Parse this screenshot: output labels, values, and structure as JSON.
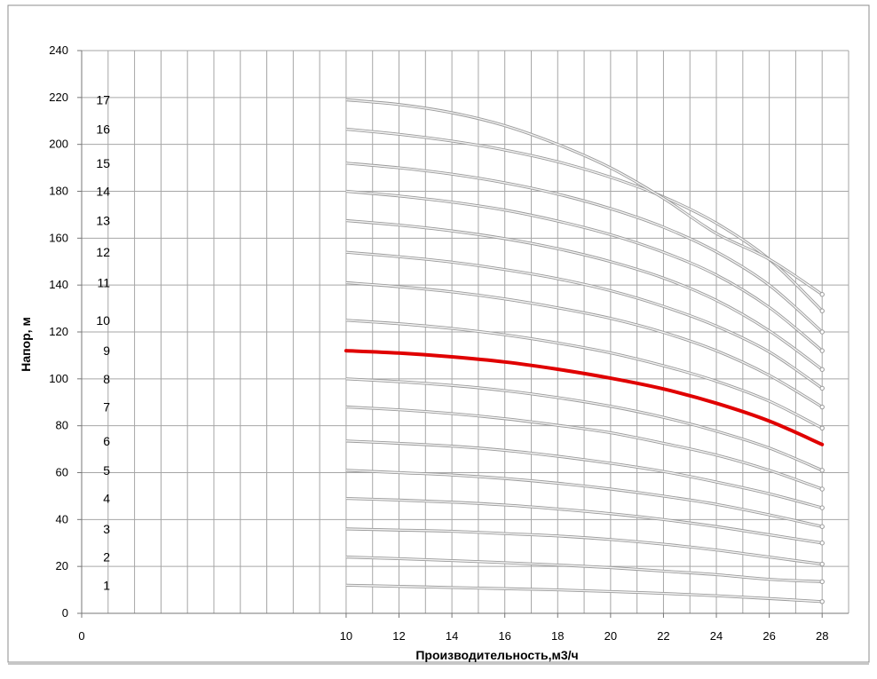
{
  "chart_data": {
    "type": "line",
    "title": "",
    "xlabel": "Производительность,м3/ч",
    "ylabel": "Напор, м",
    "xlim": [
      0,
      29
    ],
    "ylim": [
      0,
      240
    ],
    "xticks": [
      0,
      10,
      12,
      14,
      16,
      18,
      20,
      22,
      24,
      26,
      28
    ],
    "yticks": [
      0,
      20,
      40,
      60,
      80,
      100,
      120,
      140,
      160,
      180,
      200,
      220,
      240
    ],
    "grid": true,
    "legend": "none",
    "highlight_color": "#e00000",
    "curve_color": "#c8c8c8",
    "grid_color": "#a6a6a6",
    "x": [
      10,
      12,
      14,
      16,
      18,
      20,
      22,
      24,
      26,
      28
    ],
    "series": [
      {
        "name": "1",
        "values": [
          12,
          11.5,
          11,
          10.5,
          10,
          9.3,
          8.5,
          7.5,
          6.3,
          5
        ]
      },
      {
        "name": "2",
        "values": [
          24,
          23.3,
          22.5,
          21.6,
          20.6,
          19.5,
          18,
          16.5,
          14.5,
          13.5
        ]
      },
      {
        "name": "3",
        "values": [
          36,
          35.5,
          35,
          34,
          33,
          31.5,
          29.5,
          27,
          24,
          21
        ]
      },
      {
        "name": "4",
        "values": [
          49,
          48.3,
          47.4,
          46.2,
          44.5,
          42.5,
          40,
          37,
          33.5,
          30
        ]
      },
      {
        "name": "5",
        "values": [
          61,
          60,
          59,
          57.5,
          55.5,
          53,
          50,
          46.5,
          42,
          37
        ]
      },
      {
        "name": "6",
        "values": [
          73.5,
          72.5,
          71.3,
          69.5,
          67,
          64,
          60.5,
          56,
          51,
          45
        ]
      },
      {
        "name": "7",
        "values": [
          88,
          86.8,
          85.2,
          83,
          80.2,
          77,
          72.5,
          67.5,
          61,
          53
        ]
      },
      {
        "name": "8",
        "values": [
          100,
          98.8,
          97.2,
          95,
          92,
          88.3,
          83.6,
          77.7,
          70.5,
          61
        ]
      },
      {
        "name": "9",
        "values": [
          112,
          111,
          109.4,
          107.2,
          104.1,
          100.3,
          95.7,
          89.6,
          82,
          72
        ]
      },
      {
        "name": "10",
        "values": [
          125,
          123.5,
          121.5,
          118.8,
          115.3,
          111.1,
          105.6,
          99,
          90.5,
          79
        ]
      },
      {
        "name": "11",
        "values": [
          141,
          139.3,
          137.1,
          134.1,
          130.3,
          125.8,
          119.8,
          112,
          101.5,
          88
        ]
      },
      {
        "name": "12",
        "values": [
          154,
          152.1,
          149.8,
          146.6,
          142.7,
          137.6,
          130.9,
          122.5,
          111.5,
          96
        ]
      },
      {
        "name": "13",
        "values": [
          167.5,
          165.6,
          163.1,
          159.8,
          155.5,
          150,
          143,
          133.5,
          120.5,
          104
        ]
      },
      {
        "name": "14",
        "values": [
          180,
          178,
          175.4,
          172,
          167.3,
          161.5,
          154,
          144.3,
          130.5,
          112
        ]
      },
      {
        "name": "15",
        "values": [
          192,
          190,
          187.3,
          183.6,
          178.8,
          172.6,
          164.7,
          154.2,
          140,
          120
        ]
      },
      {
        "name": "16",
        "values": [
          206.5,
          204.3,
          201.4,
          197.6,
          192.6,
          186,
          177.6,
          166.4,
          151,
          129
        ]
      },
      {
        "name": "17",
        "values": [
          219,
          217,
          213.5,
          208,
          200,
          190,
          177,
          162,
          151,
          136
        ]
      }
    ],
    "highlighted_series": "9",
    "series_labels": [
      "1",
      "2",
      "3",
      "4",
      "5",
      "6",
      "7",
      "8",
      "9",
      "10",
      "11",
      "12",
      "13",
      "14",
      "15",
      "16",
      "17"
    ]
  }
}
